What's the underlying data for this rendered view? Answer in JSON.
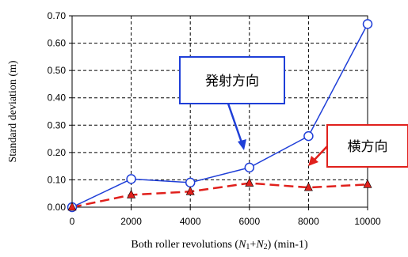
{
  "chart_data": {
    "type": "line",
    "title": "",
    "xlabel": {
      "prefix": "Both roller revolutions (",
      "n1": "N",
      "n1_sub": "1",
      "plus": "+",
      "n2": "N",
      "n2_sub": "2",
      "suffix": ") (min-1)"
    },
    "ylabel": "Standard deviation (m)",
    "xlim": [
      0,
      10000
    ],
    "ylim": [
      0,
      0.7
    ],
    "x_ticks": [
      0,
      2000,
      4000,
      6000,
      8000,
      10000
    ],
    "x_tick_labels": [
      "0",
      "2000",
      "4000",
      "6000",
      "8000",
      "10000"
    ],
    "y_ticks": [
      0,
      0.1,
      0.2,
      0.3,
      0.4,
      0.5,
      0.6,
      0.7
    ],
    "y_tick_labels": [
      "0.00",
      "0.10",
      "0.20",
      "0.30",
      "0.40",
      "0.50",
      "0.60",
      "0.70"
    ],
    "grid": true,
    "x": [
      0,
      2000,
      4000,
      6000,
      8000,
      10000
    ],
    "series": [
      {
        "values": [
          0.0,
          0.103,
          0.09,
          0.145,
          0.26,
          0.67
        ],
        "color": "#1f3fd8",
        "line": "solid",
        "marker": "circle-open"
      },
      {
        "values": [
          0.0,
          0.045,
          0.057,
          0.088,
          0.072,
          0.083
        ],
        "color": "#e0201c",
        "line": "dashed",
        "marker": "triangle-filled"
      }
    ],
    "annotations": [
      {
        "text": "発射方向",
        "border_color": "#1f3fd8",
        "points_to_series": 0,
        "points_to_x": 6000
      },
      {
        "text": "横方向",
        "border_color": "#e0201c",
        "points_to_series": 1,
        "points_to_x": 8000
      }
    ]
  }
}
